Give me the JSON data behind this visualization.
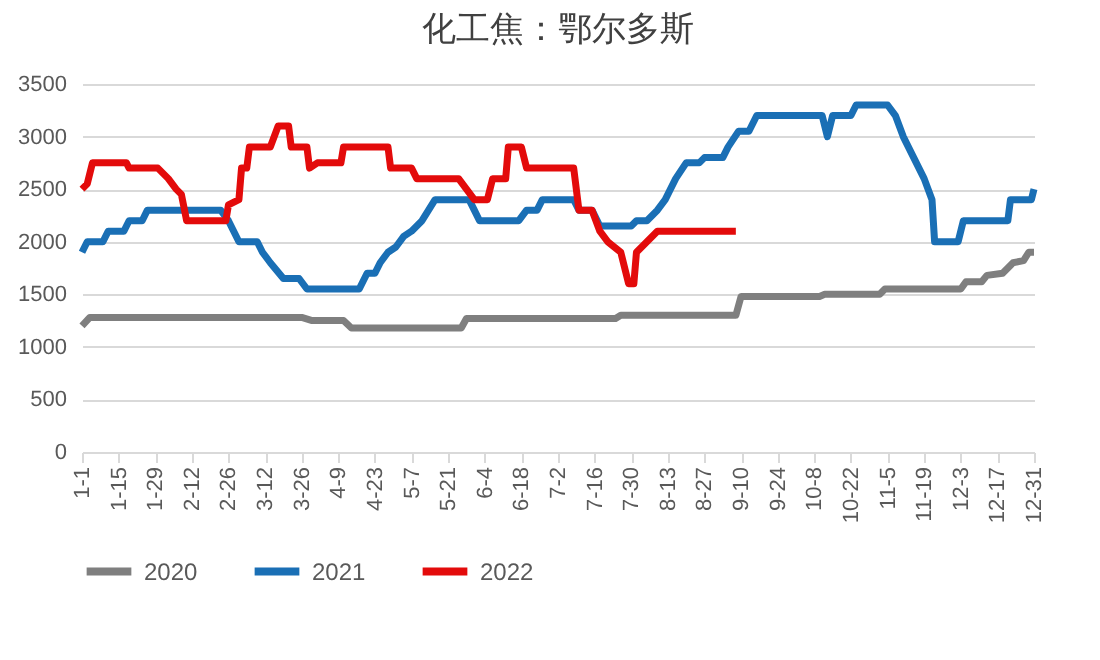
{
  "chart_data": {
    "type": "line",
    "title": "化工焦：鄂尔多斯",
    "xlim": [
      "--01-01",
      "--12-31"
    ],
    "xticks": [
      {
        "value": "--01-01",
        "label": "1-1"
      },
      {
        "value": "--01-15",
        "label": "1-15"
      },
      {
        "value": "--01-29",
        "label": "1-29"
      },
      {
        "value": "--02-12",
        "label": "2-12"
      },
      {
        "value": "--02-26",
        "label": "2-26"
      },
      {
        "value": "--03-12",
        "label": "3-12"
      },
      {
        "value": "--03-26",
        "label": "3-26"
      },
      {
        "value": "--04-09",
        "label": "4-9"
      },
      {
        "value": "--04-23",
        "label": "4-23"
      },
      {
        "value": "--05-07",
        "label": "5-7"
      },
      {
        "value": "--05-21",
        "label": "5-21"
      },
      {
        "value": "--06-04",
        "label": "6-4"
      },
      {
        "value": "--06-18",
        "label": "6-18"
      },
      {
        "value": "--07-02",
        "label": "7-2"
      },
      {
        "value": "--07-16",
        "label": "7-16"
      },
      {
        "value": "--07-30",
        "label": "7-30"
      },
      {
        "value": "--08-13",
        "label": "8-13"
      },
      {
        "value": "--08-27",
        "label": "8-27"
      },
      {
        "value": "--09-10",
        "label": "9-10"
      },
      {
        "value": "--09-24",
        "label": "9-24"
      },
      {
        "value": "--10-08",
        "label": "10-8"
      },
      {
        "value": "--10-22",
        "label": "10-22"
      },
      {
        "value": "--11-05",
        "label": "11-5"
      },
      {
        "value": "--11-19",
        "label": "11-19"
      },
      {
        "value": "--12-03",
        "label": "12-3"
      },
      {
        "value": "--12-17",
        "label": "12-17"
      },
      {
        "value": "--12-31",
        "label": "12-31"
      }
    ],
    "ylim": [
      0,
      3500
    ],
    "yticks": [
      0,
      500,
      1000,
      1500,
      2000,
      2500,
      3000,
      3500
    ],
    "grid": "y",
    "legend": "bottom",
    "line_style": "solid",
    "marker": "none",
    "series": [
      {
        "name": "2020",
        "color": "#7f7f7f",
        "x": [
          "--01-01",
          "--01-04",
          "--03-26",
          "--03-30",
          "--04-11",
          "--04-14",
          "--05-26",
          "--05-28",
          "--07-24",
          "--07-26",
          "--09-08",
          "--09-10",
          "--10-10",
          "--10-12",
          "--11-02",
          "--11-04",
          "--12-03",
          "--12-05",
          "--12-11",
          "--12-13",
          "--12-19",
          "--12-23",
          "--12-27",
          "--12-29",
          "--12-31"
        ],
        "values": [
          1200,
          1280,
          1280,
          1250,
          1250,
          1180,
          1180,
          1270,
          1270,
          1300,
          1300,
          1480,
          1480,
          1500,
          1500,
          1550,
          1550,
          1620,
          1620,
          1680,
          1700,
          1800,
          1820,
          1900,
          1900
        ]
      },
      {
        "name": "2021",
        "color": "#1a6fb5",
        "x": [
          "--01-01",
          "--01-03",
          "--01-09",
          "--01-11",
          "--01-17",
          "--01-19",
          "--01-24",
          "--01-26",
          "--02-23",
          "--02-26",
          "--02-28",
          "--03-02",
          "--03-09",
          "--03-11",
          "--03-14",
          "--03-19",
          "--03-25",
          "--03-28",
          "--04-17",
          "--04-20",
          "--04-23",
          "--04-25",
          "--04-28",
          "--05-01",
          "--05-04",
          "--05-07",
          "--05-11",
          "--05-16",
          "--05-29",
          "--05-31",
          "--06-02",
          "--06-17",
          "--06-20",
          "--06-24",
          "--06-26",
          "--07-08",
          "--07-10",
          "--07-15",
          "--07-18",
          "--07-30",
          "--08-01",
          "--08-05",
          "--08-09",
          "--08-12",
          "--08-16",
          "--08-20",
          "--08-25",
          "--08-27",
          "--09-03",
          "--09-05",
          "--09-09",
          "--09-13",
          "--09-16",
          "--10-11",
          "--10-13",
          "--10-15",
          "--10-22",
          "--10-24",
          "--11-05",
          "--11-08",
          "--11-11",
          "--11-15",
          "--11-19",
          "--11-22",
          "--11-23",
          "--12-02",
          "--12-04",
          "--12-21",
          "--12-22",
          "--12-30",
          "--12-31"
        ],
        "values": [
          1900,
          2000,
          2000,
          2100,
          2100,
          2200,
          2200,
          2300,
          2300,
          2200,
          2100,
          2000,
          2000,
          1900,
          1800,
          1650,
          1650,
          1550,
          1550,
          1700,
          1700,
          1800,
          1900,
          1950,
          2050,
          2100,
          2200,
          2400,
          2400,
          2300,
          2200,
          2200,
          2300,
          2300,
          2400,
          2400,
          2300,
          2300,
          2150,
          2150,
          2200,
          2200,
          2300,
          2400,
          2600,
          2750,
          2750,
          2800,
          2800,
          2900,
          3050,
          3050,
          3200,
          3200,
          3000,
          3200,
          3200,
          3300,
          3300,
          3200,
          3000,
          2800,
          2600,
          2400,
          2000,
          2000,
          2200,
          2200,
          2400,
          2400,
          2500
        ]
      },
      {
        "name": "2022",
        "color": "#e30b0b",
        "x": [
          "--01-01",
          "--01-03",
          "--01-05",
          "--01-18",
          "--01-19",
          "--01-30",
          "--02-03",
          "--02-06",
          "--02-08",
          "--02-10",
          "--02-25",
          "--02-26",
          "--03-02",
          "--03-03",
          "--03-05",
          "--03-06",
          "--03-14",
          "--03-17",
          "--03-21",
          "--03-22",
          "--03-28",
          "--03-29",
          "--04-01",
          "--04-10",
          "--04-11",
          "--04-28",
          "--04-29",
          "--05-07",
          "--05-09",
          "--05-25",
          "--05-28",
          "--05-31",
          "--06-05",
          "--06-07",
          "--06-12",
          "--06-13",
          "--06-18",
          "--06-20",
          "--07-08",
          "--07-10",
          "--07-15",
          "--07-18",
          "--07-21",
          "--07-26",
          "--07-29",
          "--07-31",
          "--08-01",
          "--08-05",
          "--08-09",
          "--09-08"
        ],
        "values": [
          2500,
          2550,
          2750,
          2750,
          2700,
          2700,
          2600,
          2500,
          2450,
          2200,
          2200,
          2350,
          2400,
          2700,
          2700,
          2900,
          2900,
          3100,
          3100,
          2900,
          2900,
          2700,
          2750,
          2750,
          2900,
          2900,
          2700,
          2700,
          2600,
          2600,
          2500,
          2400,
          2400,
          2600,
          2600,
          2900,
          2900,
          2700,
          2700,
          2300,
          2300,
          2100,
          2000,
          1900,
          1600,
          1600,
          1900,
          2000,
          2100,
          2100
        ]
      }
    ]
  }
}
